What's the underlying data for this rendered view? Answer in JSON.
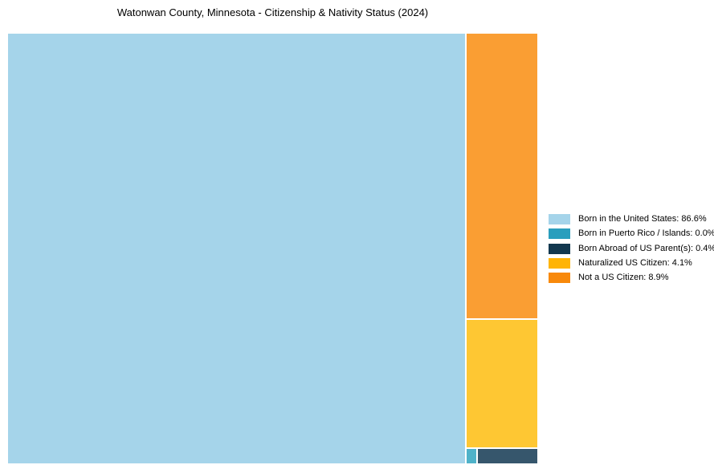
{
  "title": "Watonwan County, Minnesota - Citizenship & Nativity Status (2024)",
  "chart_data": {
    "type": "treemap",
    "title": "Watonwan County, Minnesota - Citizenship & Nativity Status (2024)",
    "categories": [
      "Born in the United States",
      "Born in Puerto Rico / Islands",
      "Born Abroad of US Parent(s)",
      "Naturalized US Citizen",
      "Not a US Citizen"
    ],
    "values": [
      86.6,
      0.0,
      0.4,
      4.1,
      8.9
    ],
    "unit": "%",
    "legend_position": "right",
    "grid": false
  },
  "treemap": {
    "tiles": [
      {
        "name": "born-us",
        "label": "Born in the United States",
        "value": "86.6%",
        "color": "#A5D4EA"
      },
      {
        "name": "not-citizen",
        "label": "Not a US Citizen",
        "value": "8.9%",
        "color": "#FA9E33"
      },
      {
        "name": "naturalized",
        "label": "Naturalized US Citizen",
        "value": "4.1%",
        "color": "#FEC733"
      },
      {
        "name": "puerto-rico",
        "label": "Born in Puerto Rico / Islands",
        "value": "0.0%",
        "color": "#4FB2C9"
      },
      {
        "name": "born-abroad",
        "label": "Born Abroad of US Parent(s)",
        "value": "0.4%",
        "color": "#36566C"
      }
    ]
  },
  "legend": {
    "items": [
      {
        "text": "Born in the United States: 86.6%",
        "swatch_color": "#A5D4EA"
      },
      {
        "text": "Born in Puerto Rico / Islands: 0.0%",
        "swatch_color": "#2A9EBD"
      },
      {
        "text": "Born Abroad of US Parent(s): 0.4%",
        "swatch_color": "#12384F"
      },
      {
        "text": "Naturalized US Citizen: 4.1%",
        "swatch_color": "#FFB405"
      },
      {
        "text": "Not a US Citizen: 8.9%",
        "swatch_color": "#F8890B"
      }
    ]
  }
}
